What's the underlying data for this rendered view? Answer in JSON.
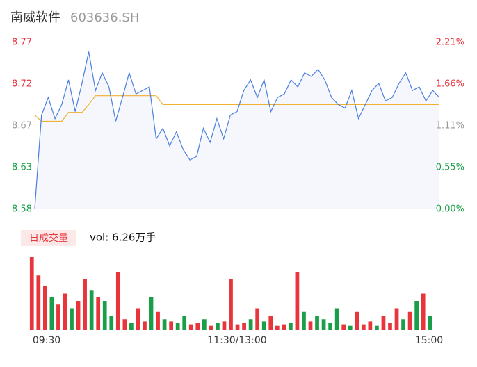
{
  "header": {
    "title": "南威软件",
    "code": "603636.SH"
  },
  "chart_data": [
    {
      "type": "line",
      "categories": [
        "09:30",
        null,
        null,
        null,
        null,
        null,
        null,
        null,
        null,
        null,
        null,
        null,
        null,
        null,
        null,
        null,
        null,
        null,
        null,
        null,
        null,
        null,
        null,
        null,
        null,
        null,
        null,
        null,
        null,
        null,
        "11:30/13:00",
        null,
        null,
        null,
        null,
        null,
        null,
        null,
        null,
        null,
        null,
        null,
        null,
        null,
        null,
        null,
        null,
        null,
        null,
        null,
        null,
        null,
        null,
        null,
        null,
        null,
        null,
        null,
        null,
        null,
        "15:00"
      ],
      "series": [
        {
          "name": "price",
          "color": "#4a7fe0",
          "values": [
            8.581,
            8.687,
            8.707,
            8.683,
            8.699,
            8.727,
            8.691,
            8.723,
            8.759,
            8.715,
            8.735,
            8.719,
            8.68,
            8.707,
            8.735,
            8.711,
            8.715,
            8.719,
            8.66,
            8.672,
            8.652,
            8.668,
            8.648,
            8.636,
            8.64,
            8.672,
            8.656,
            8.683,
            8.66,
            8.687,
            8.691,
            8.715,
            8.727,
            8.707,
            8.727,
            8.691,
            8.707,
            8.711,
            8.727,
            8.719,
            8.735,
            8.731,
            8.739,
            8.727,
            8.707,
            8.699,
            8.695,
            8.715,
            8.683,
            8.699,
            8.715,
            8.723,
            8.703,
            8.707,
            8.723,
            8.735,
            8.715,
            8.719,
            8.703,
            8.715,
            8.707
          ]
        },
        {
          "name": "average",
          "color": "#f0b030",
          "values": [
            8.687,
            8.68,
            8.68,
            8.68,
            8.68,
            8.69,
            8.69,
            8.69,
            8.699,
            8.709,
            8.709,
            8.709,
            8.709,
            8.709,
            8.709,
            8.709,
            8.709,
            8.709,
            8.709,
            8.699,
            8.699,
            8.699,
            8.699,
            8.699,
            8.699,
            8.699,
            8.699,
            8.699,
            8.699,
            8.699,
            8.699,
            8.699,
            8.699,
            8.699,
            8.699,
            8.699,
            8.699,
            8.699,
            8.699,
            8.699,
            8.699,
            8.699,
            8.699,
            8.699,
            8.699,
            8.699,
            8.699,
            8.699,
            8.699,
            8.699,
            8.699,
            8.699,
            8.699,
            8.699,
            8.699,
            8.699,
            8.699,
            8.699,
            8.699,
            8.699,
            8.699
          ]
        }
      ],
      "ylim": [
        8.58,
        8.7696
      ],
      "yticks": [
        {
          "value": 8.58,
          "label": "8.58"
        },
        {
          "value": 8.6274,
          "label": "8.63"
        },
        {
          "value": 8.6748,
          "label": "8.67"
        },
        {
          "value": 8.7222,
          "label": "8.72"
        },
        {
          "value": 8.7696,
          "label": "8.77"
        }
      ],
      "y2lim": [
        0,
        2.21
      ],
      "y2ticks": [
        {
          "value": 0,
          "label": "0.00%"
        },
        {
          "value": 0.5525,
          "label": "0.55%"
        },
        {
          "value": 1.105,
          "label": "1.11%"
        },
        {
          "value": 1.6575,
          "label": "1.66%"
        },
        {
          "value": 2.21,
          "label": "2.21%"
        }
      ],
      "ytick_colors": [
        "#1a9e4a",
        "#1a9e4a",
        "#999999",
        "#e8343b",
        "#e8343b"
      ]
    },
    {
      "type": "bar",
      "legend": "日成交量",
      "annotation": "vol: 6.26万手",
      "up_color": "#e8343b",
      "down_color": "#1a9e4a",
      "values": [
        100,
        75,
        60,
        45,
        35,
        50,
        30,
        40,
        70,
        55,
        45,
        40,
        20,
        80,
        15,
        10,
        30,
        12,
        45,
        25,
        15,
        12,
        10,
        20,
        8,
        10,
        15,
        6,
        10,
        12,
        70,
        8,
        10,
        15,
        30,
        12,
        20,
        6,
        8,
        10,
        80,
        25,
        12,
        20,
        15,
        10,
        30,
        8,
        6,
        25,
        8,
        12,
        6,
        20,
        10,
        30,
        15,
        25,
        40,
        50,
        20
      ],
      "ylim": [
        0,
        100
      ]
    }
  ]
}
